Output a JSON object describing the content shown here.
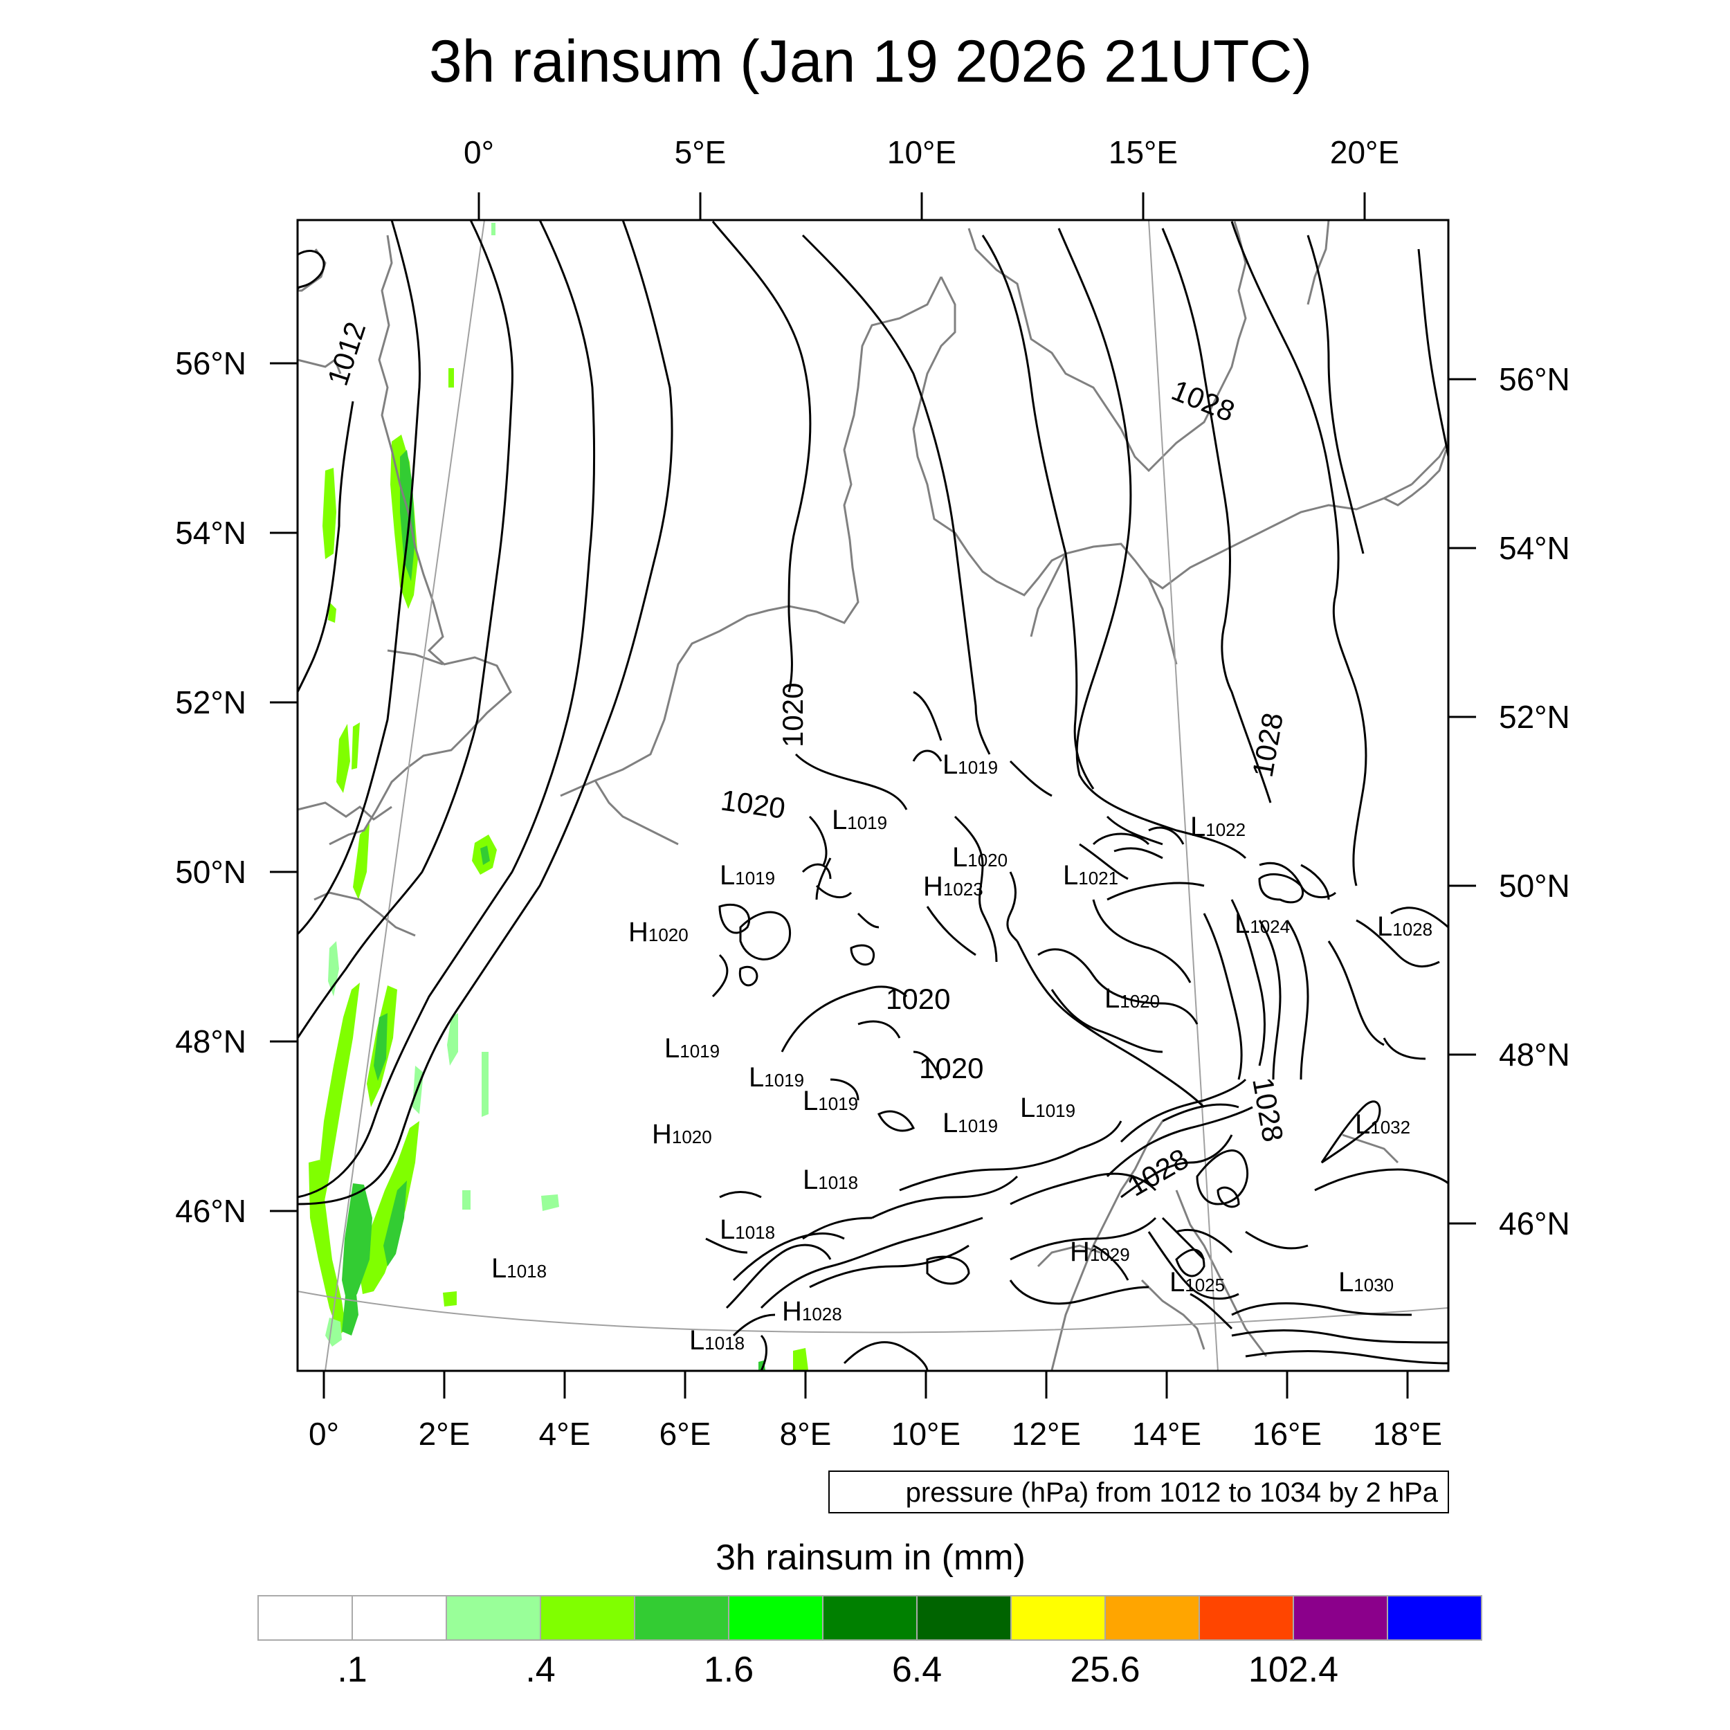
{
  "title": "3h rainsum (Jan 19 2026 21UTC)",
  "axes": {
    "top_lon_ticks": [
      "0°",
      "5°E",
      "10°E",
      "15°E",
      "20°E"
    ],
    "bottom_lon_ticks": [
      "0°",
      "2°E",
      "4°E",
      "6°E",
      "8°E",
      "10°E",
      "12°E",
      "14°E",
      "16°E",
      "18°E"
    ],
    "left_lat_ticks": [
      "56°N",
      "54°N",
      "52°N",
      "50°N",
      "48°N",
      "46°N"
    ],
    "right_lat_ticks": [
      "56°N",
      "54°N",
      "52°N",
      "50°N",
      "48°N",
      "46°N"
    ]
  },
  "contour_info": "pressure (hPa) from 1012 to 1034 by 2 hPa",
  "contour_labels": [
    "1012",
    "1020",
    "1020",
    "1020",
    "1020",
    "1028",
    "1028",
    "1028",
    "1028"
  ],
  "pressure_centers": [
    {
      "type": "L",
      "value": "1019"
    },
    {
      "type": "L",
      "value": "1019"
    },
    {
      "type": "L",
      "value": "1020"
    },
    {
      "type": "H",
      "value": "1023"
    },
    {
      "type": "L",
      "value": "1021"
    },
    {
      "type": "L",
      "value": "1022"
    },
    {
      "type": "L",
      "value": "1019"
    },
    {
      "type": "H",
      "value": "1020"
    },
    {
      "type": "L",
      "value": "1024"
    },
    {
      "type": "L",
      "value": "1028"
    },
    {
      "type": "L",
      "value": "1020"
    },
    {
      "type": "L",
      "value": "1019"
    },
    {
      "type": "L",
      "value": "1019"
    },
    {
      "type": "L",
      "value": "1019"
    },
    {
      "type": "L",
      "value": "1019"
    },
    {
      "type": "H",
      "value": "1020"
    },
    {
      "type": "L",
      "value": "1032"
    },
    {
      "type": "L",
      "value": "1018"
    },
    {
      "type": "L",
      "value": "1018"
    },
    {
      "type": "H",
      "value": "1029"
    },
    {
      "type": "L",
      "value": "1025"
    },
    {
      "type": "L",
      "value": "1030"
    },
    {
      "type": "L",
      "value": "1018"
    },
    {
      "type": "H",
      "value": "1028"
    },
    {
      "type": "L",
      "value": "1018"
    },
    {
      "type": "L",
      "value": "1019"
    }
  ],
  "colorbar": {
    "title": "3h rainsum in (mm)",
    "colors": [
      "#ffffff",
      "#ffffff",
      "#99ff99",
      "#80ff00",
      "#33cc33",
      "#00ff00",
      "#008000",
      "#006400",
      "#ffff00",
      "#ffa500",
      "#ff4500",
      "#8b008b",
      "#0000ff"
    ],
    "tick_labels": [
      ".1",
      ".4",
      "1.6",
      "6.4",
      "25.6",
      "102.4"
    ]
  }
}
